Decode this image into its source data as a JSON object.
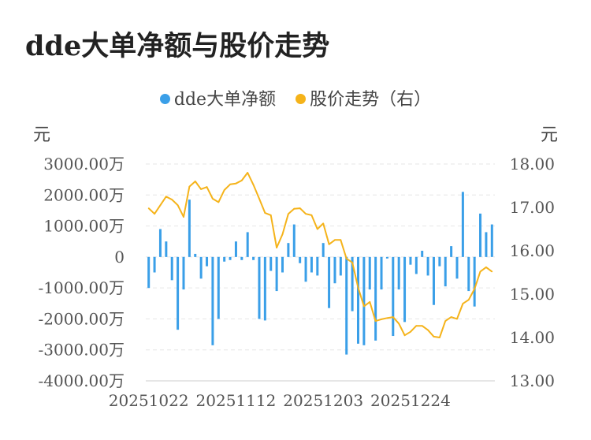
{
  "title": "dde大单净额与股价走势",
  "legend": [
    {
      "label": "dde大单净额",
      "color": "#3a9fe8"
    },
    {
      "label": "股价走势（右）",
      "color": "#f5b31a"
    }
  ],
  "chart_data": {
    "type": "bar+line",
    "left_axis": {
      "unit": "元",
      "ticks": [
        "3000.00万",
        "2000.00万",
        "1000.00万",
        "0",
        "-1000.00万",
        "-2000.00万",
        "-3000.00万",
        "-4000.00万"
      ],
      "range": [
        -4000,
        3000
      ]
    },
    "right_axis": {
      "unit": "元",
      "ticks": [
        "18.00",
        "17.00",
        "16.00",
        "15.00",
        "14.00",
        "13.00"
      ],
      "range": [
        13,
        18
      ]
    },
    "x_tick_labels": [
      {
        "label": "20251022",
        "index": 0
      },
      {
        "label": "20251112",
        "index": 15
      },
      {
        "label": "20251203",
        "index": 30
      },
      {
        "label": "20251224",
        "index": 45
      }
    ],
    "grid": "horizontal dashed",
    "legend_position": "top-center",
    "series": [
      {
        "name": "dde大单净额",
        "type": "bar",
        "color": "#3a9fe8",
        "unit": "万",
        "values": [
          -1000,
          -500,
          900,
          500,
          -750,
          -2350,
          -1050,
          1850,
          100,
          -700,
          -300,
          -2850,
          -2000,
          -150,
          -100,
          500,
          -100,
          800,
          -100,
          -2000,
          -2050,
          -450,
          -1100,
          -500,
          450,
          1050,
          -200,
          -800,
          -500,
          -600,
          450,
          -1650,
          -850,
          -600,
          -3150,
          -1750,
          -2800,
          -2850,
          -1050,
          -2700,
          -1050,
          -50,
          -2550,
          -1050,
          -2100,
          -250,
          -550,
          200,
          -600,
          -1550,
          -300,
          -950,
          350,
          -700,
          2100,
          -1100,
          -1600,
          1400,
          800,
          1050
        ]
      },
      {
        "name": "股价走势（右）",
        "type": "line",
        "color": "#f5b31a",
        "unit": "元",
        "values": [
          16.98,
          16.85,
          17.05,
          17.25,
          17.18,
          17.05,
          16.78,
          17.48,
          17.6,
          17.42,
          17.47,
          17.2,
          17.12,
          17.4,
          17.53,
          17.55,
          17.62,
          17.8,
          17.52,
          17.2,
          16.87,
          16.82,
          16.07,
          16.38,
          16.85,
          16.97,
          16.98,
          16.85,
          16.82,
          16.5,
          16.63,
          16.15,
          16.25,
          16.25,
          15.82,
          15.73,
          15.15,
          14.72,
          14.82,
          14.38,
          14.42,
          14.45,
          14.47,
          14.32,
          14.05,
          14.13,
          14.27,
          14.27,
          14.17,
          14.02,
          14.0,
          14.38,
          14.47,
          14.43,
          14.78,
          14.87,
          15.12,
          15.52,
          15.62,
          15.52
        ]
      }
    ]
  }
}
